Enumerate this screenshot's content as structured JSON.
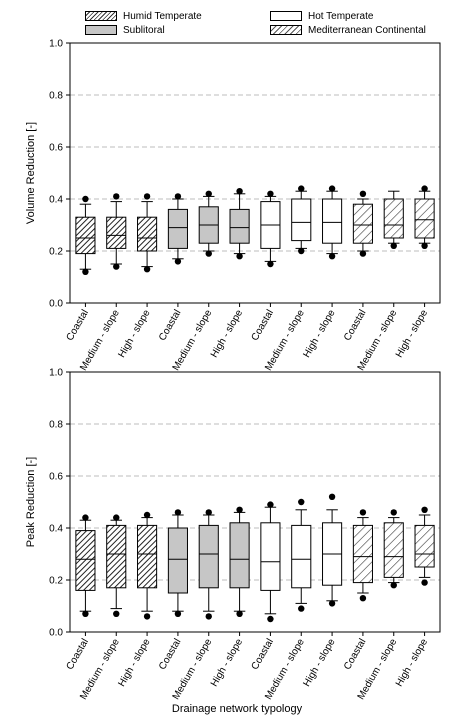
{
  "legend": {
    "items": [
      {
        "label": "Humid Temperate",
        "fill": "humid"
      },
      {
        "label": "Sublitoral",
        "fill": "sub"
      },
      {
        "label": "Hot Temperate",
        "fill": "hot"
      },
      {
        "label": "Mediterranean Continental",
        "fill": "med"
      }
    ]
  },
  "colors": {
    "sublitoral_fill": "#c6c6c6",
    "gridline": "#bdbdbd",
    "outline": "#000000"
  },
  "xlabel": "Drainage network typology",
  "chart_data": [
    {
      "type": "box",
      "ylabel": "Volume Reduction [-]",
      "ylim": [
        0,
        1.0
      ],
      "yticks": [
        "0.0",
        "0.2",
        "0.4",
        "0.6",
        "0.8",
        "1.0"
      ],
      "grid": "dashed horizontal at 0.2, 0.4, 0.6, 0.8",
      "categories": [
        "Coastal",
        "Medium - slope",
        "High - slope",
        "Coastal",
        "Medium - slope",
        "High - slope",
        "Coastal",
        "Medium - slope",
        "High - slope",
        "Coastal",
        "Medium - slope",
        "High - slope"
      ],
      "groups": [
        "humid",
        "humid",
        "humid",
        "sub",
        "sub",
        "sub",
        "hot",
        "hot",
        "hot",
        "med",
        "med",
        "med"
      ],
      "boxes": [
        {
          "whisker_low": 0.13,
          "q1": 0.19,
          "median": 0.25,
          "q3": 0.33,
          "whisker_high": 0.38,
          "outlier_low": 0.12,
          "outlier_high": 0.4
        },
        {
          "whisker_low": 0.15,
          "q1": 0.21,
          "median": 0.26,
          "q3": 0.33,
          "whisker_high": 0.39,
          "outlier_low": 0.14,
          "outlier_high": 0.41
        },
        {
          "whisker_low": 0.14,
          "q1": 0.2,
          "median": 0.25,
          "q3": 0.33,
          "whisker_high": 0.39,
          "outlier_low": 0.13,
          "outlier_high": 0.41
        },
        {
          "whisker_low": 0.17,
          "q1": 0.21,
          "median": 0.29,
          "q3": 0.36,
          "whisker_high": 0.4,
          "outlier_low": 0.16,
          "outlier_high": 0.41
        },
        {
          "whisker_low": 0.2,
          "q1": 0.23,
          "median": 0.3,
          "q3": 0.37,
          "whisker_high": 0.41,
          "outlier_low": 0.19,
          "outlier_high": 0.42
        },
        {
          "whisker_low": 0.19,
          "q1": 0.23,
          "median": 0.29,
          "q3": 0.36,
          "whisker_high": 0.42,
          "outlier_low": 0.18,
          "outlier_high": 0.43
        },
        {
          "whisker_low": 0.16,
          "q1": 0.21,
          "median": 0.3,
          "q3": 0.39,
          "whisker_high": 0.41,
          "outlier_low": 0.15,
          "outlier_high": 0.42
        },
        {
          "whisker_low": 0.21,
          "q1": 0.24,
          "median": 0.31,
          "q3": 0.4,
          "whisker_high": 0.43,
          "outlier_low": 0.2,
          "outlier_high": 0.44
        },
        {
          "whisker_low": 0.19,
          "q1": 0.23,
          "median": 0.31,
          "q3": 0.4,
          "whisker_high": 0.43,
          "outlier_low": 0.18,
          "outlier_high": 0.44
        },
        {
          "whisker_low": 0.2,
          "q1": 0.23,
          "median": 0.3,
          "q3": 0.38,
          "whisker_high": 0.4,
          "outlier_low": 0.19,
          "outlier_high": 0.42
        },
        {
          "whisker_low": 0.23,
          "q1": 0.25,
          "median": 0.3,
          "q3": 0.4,
          "whisker_high": 0.43,
          "outlier_low": 0.22,
          "outlier_high": null
        },
        {
          "whisker_low": 0.23,
          "q1": 0.25,
          "median": 0.32,
          "q3": 0.4,
          "whisker_high": 0.43,
          "outlier_low": 0.22,
          "outlier_high": 0.44
        }
      ]
    },
    {
      "type": "box",
      "ylabel": "Peak Reduction [-]",
      "ylim": [
        0,
        1.0
      ],
      "yticks": [
        "0.0",
        "0.2",
        "0.4",
        "0.6",
        "0.8",
        "1.0"
      ],
      "grid": "dashed horizontal at 0.2, 0.4, 0.6, 0.8",
      "categories": [
        "Coastal",
        "Medium - slope",
        "High - slope",
        "Coastal",
        "Medium - slope",
        "High - slope",
        "Coastal",
        "Medium - slope",
        "High - slope",
        "Coastal",
        "Medium - slope",
        "High - slope"
      ],
      "groups": [
        "humid",
        "humid",
        "humid",
        "sub",
        "sub",
        "sub",
        "hot",
        "hot",
        "hot",
        "med",
        "med",
        "med"
      ],
      "boxes": [
        {
          "whisker_low": 0.08,
          "q1": 0.16,
          "median": 0.28,
          "q3": 0.39,
          "whisker_high": 0.43,
          "outlier_low": 0.07,
          "outlier_high": 0.44
        },
        {
          "whisker_low": 0.09,
          "q1": 0.17,
          "median": 0.3,
          "q3": 0.41,
          "whisker_high": 0.43,
          "outlier_low": 0.07,
          "outlier_high": 0.44
        },
        {
          "whisker_low": 0.08,
          "q1": 0.17,
          "median": 0.3,
          "q3": 0.41,
          "whisker_high": 0.44,
          "outlier_low": 0.06,
          "outlier_high": 0.45
        },
        {
          "whisker_low": 0.08,
          "q1": 0.15,
          "median": 0.28,
          "q3": 0.4,
          "whisker_high": 0.45,
          "outlier_low": 0.07,
          "outlier_high": 0.46
        },
        {
          "whisker_low": 0.08,
          "q1": 0.17,
          "median": 0.3,
          "q3": 0.41,
          "whisker_high": 0.45,
          "outlier_low": 0.06,
          "outlier_high": 0.46
        },
        {
          "whisker_low": 0.08,
          "q1": 0.17,
          "median": 0.28,
          "q3": 0.42,
          "whisker_high": 0.46,
          "outlier_low": 0.07,
          "outlier_high": 0.47
        },
        {
          "whisker_low": 0.07,
          "q1": 0.16,
          "median": 0.27,
          "q3": 0.42,
          "whisker_high": 0.48,
          "outlier_low": 0.05,
          "outlier_high": 0.49
        },
        {
          "whisker_low": 0.11,
          "q1": 0.17,
          "median": 0.28,
          "q3": 0.41,
          "whisker_high": 0.47,
          "outlier_low": 0.09,
          "outlier_high": 0.5
        },
        {
          "whisker_low": 0.12,
          "q1": 0.18,
          "median": 0.3,
          "q3": 0.42,
          "whisker_high": 0.47,
          "outlier_low": 0.11,
          "outlier_high": 0.52
        },
        {
          "whisker_low": 0.15,
          "q1": 0.19,
          "median": 0.29,
          "q3": 0.41,
          "whisker_high": 0.44,
          "outlier_low": 0.13,
          "outlier_high": 0.46
        },
        {
          "whisker_low": 0.19,
          "q1": 0.21,
          "median": 0.29,
          "q3": 0.42,
          "whisker_high": 0.44,
          "outlier_low": 0.18,
          "outlier_high": 0.46
        },
        {
          "whisker_low": 0.21,
          "q1": 0.25,
          "median": 0.3,
          "q3": 0.41,
          "whisker_high": 0.45,
          "outlier_low": 0.19,
          "outlier_high": 0.47
        }
      ]
    }
  ]
}
